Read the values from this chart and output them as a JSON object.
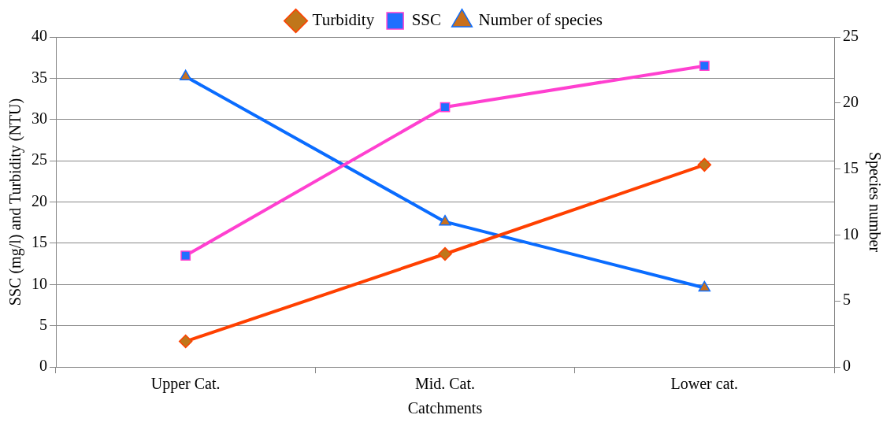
{
  "chart_data": {
    "type": "line",
    "xlabel": "Catchments",
    "ylabel": "SSC (mg/l) and Turbidity (NTU)",
    "y2label": "Species number",
    "categories": [
      "Upper Cat.",
      "Mid. Cat.",
      "Lower cat."
    ],
    "series": [
      {
        "name": "Turbidity",
        "color": "#ff4000",
        "marker": "diamond",
        "values": [
          3.1,
          13.7,
          24.5
        ]
      },
      {
        "name": "SSC",
        "color": "#ff40d0",
        "marker": "square",
        "values": [
          13.5,
          31.5,
          36.5
        ]
      },
      {
        "name": "Number of species",
        "color": "#0a6cff",
        "marker": "triangle",
        "axis": "y2",
        "values": [
          22,
          11,
          6
        ]
      }
    ],
    "ylim": [
      0,
      40
    ],
    "yticks": [
      0,
      5,
      10,
      15,
      20,
      25,
      30,
      35,
      40
    ],
    "y2lim": [
      0,
      25
    ],
    "y2ticks": [
      0,
      5,
      10,
      15,
      20,
      25
    ],
    "grid": "y",
    "legend": "top",
    "line_style": "solid"
  }
}
